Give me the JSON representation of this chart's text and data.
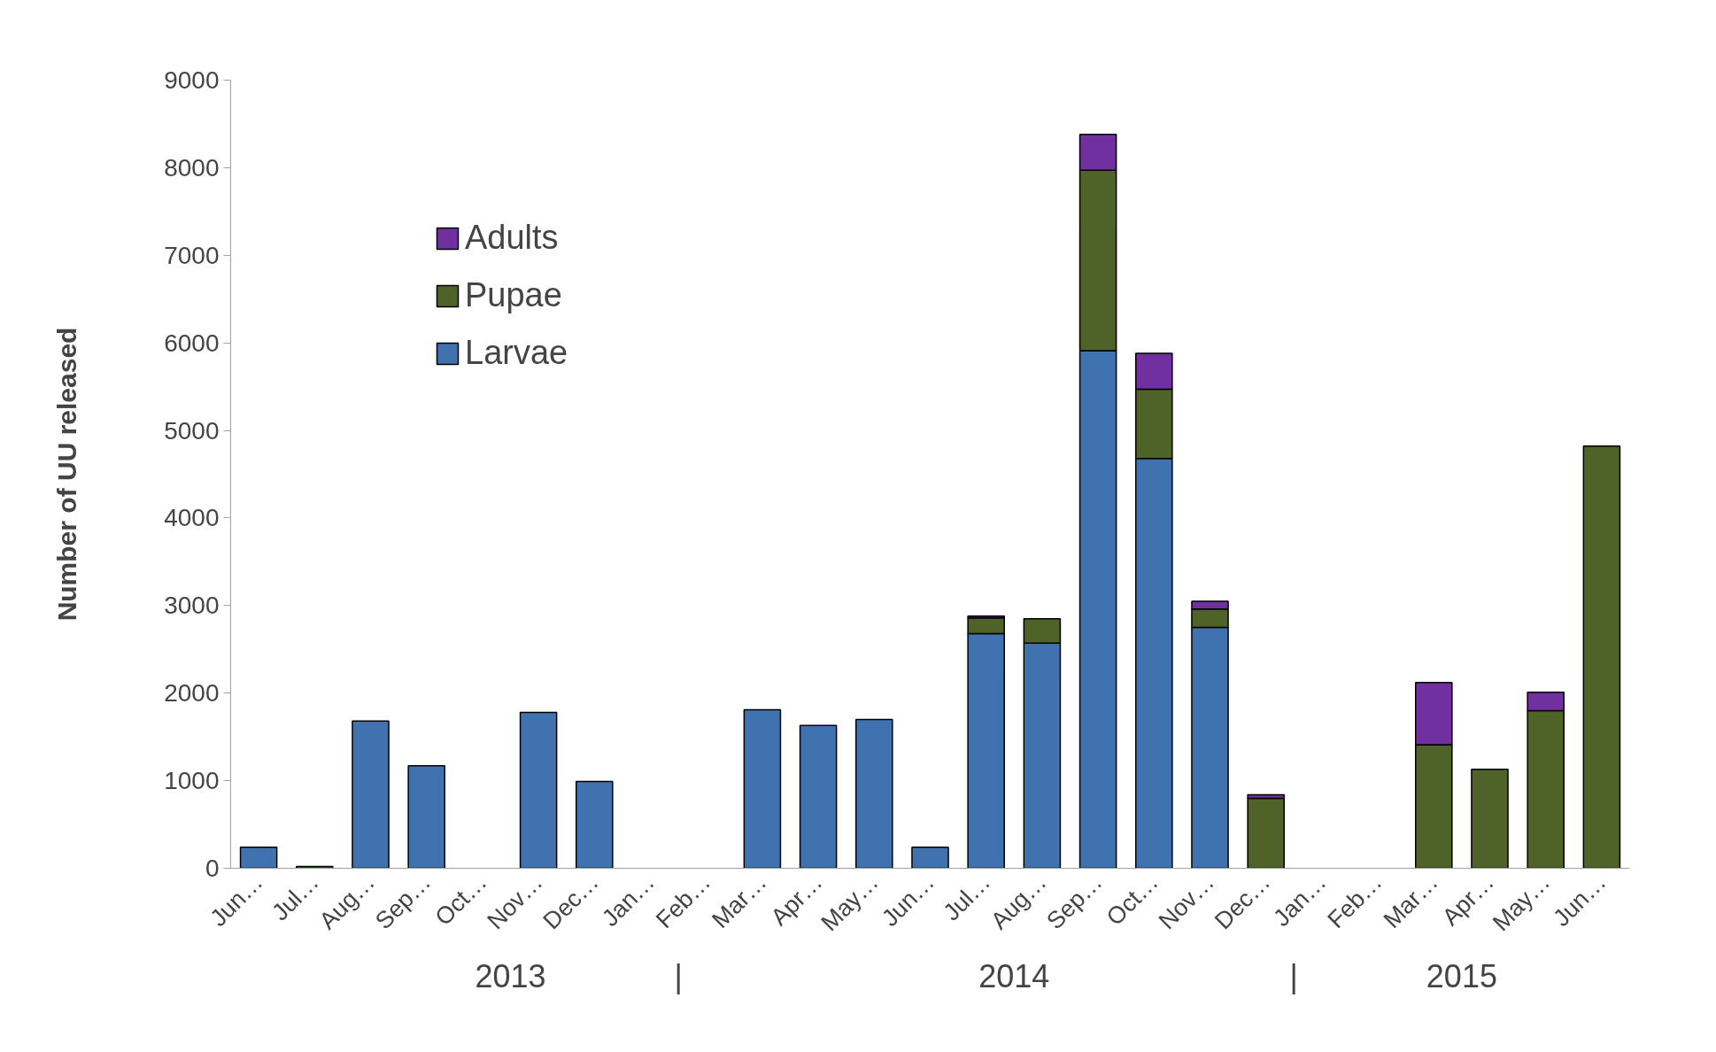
{
  "chart_data": {
    "type": "bar",
    "stacked": true,
    "ylabel": "Number of UU released",
    "categories": [
      "Jun…",
      "Jul…",
      "Aug…",
      "Sep…",
      "Oct…",
      "Nov…",
      "Dec…",
      "Jan…",
      "Feb…",
      "Mar…",
      "Apr…",
      "May…",
      "Jun…",
      "Jul…",
      "Aug…",
      "Sep…",
      "Oct…",
      "Nov…",
      "Dec…",
      "Jan…",
      "Feb…",
      "Mar…",
      "Apr…",
      "May…",
      "Jun…"
    ],
    "series": [
      {
        "name": "Larvae",
        "color": "#3f72af",
        "values": [
          240,
          20,
          1680,
          1170,
          null,
          1780,
          990,
          null,
          null,
          1810,
          1630,
          1700,
          240,
          2680,
          2570,
          5910,
          4680,
          2750,
          null,
          null,
          null,
          null,
          null,
          null,
          null
        ]
      },
      {
        "name": "Pupae",
        "color": "#4f6228",
        "values": [
          null,
          null,
          null,
          null,
          null,
          null,
          null,
          null,
          null,
          null,
          null,
          null,
          null,
          180,
          280,
          2060,
          790,
          210,
          800,
          null,
          null,
          1410,
          1130,
          1800,
          4820
        ]
      },
      {
        "name": "Adults",
        "color": "#7030a0",
        "values": [
          null,
          null,
          null,
          null,
          null,
          null,
          null,
          null,
          null,
          null,
          null,
          null,
          null,
          20,
          null,
          410,
          410,
          90,
          40,
          null,
          null,
          710,
          null,
          210,
          null
        ]
      }
    ],
    "ylim": [
      0,
      9000
    ],
    "yticks": [
      0,
      1000,
      2000,
      3000,
      4000,
      5000,
      6000,
      7000,
      8000,
      9000
    ],
    "annotations": [
      "2013",
      "|",
      "2014",
      "|",
      "2015"
    ],
    "legend": "top left",
    "grid": false
  }
}
